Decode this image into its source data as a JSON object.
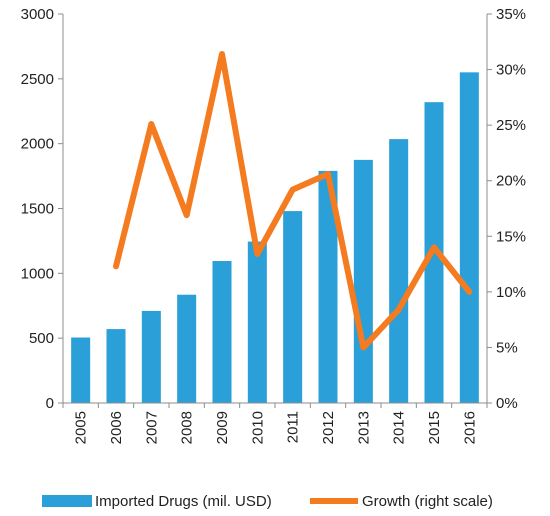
{
  "chart_data": {
    "type": "bar+line",
    "categories": [
      "2005",
      "2006",
      "2007",
      "2008",
      "2009",
      "2010",
      "2011",
      "2012",
      "2013",
      "2014",
      "2015",
      "2016"
    ],
    "series": [
      {
        "name": "Imported Drugs (mil. USD)",
        "type": "bar",
        "axis": "left",
        "color": "#2a9fd8",
        "values": [
          505,
          570,
          710,
          835,
          1095,
          1245,
          1480,
          1790,
          1875,
          2035,
          2320,
          2550
        ]
      },
      {
        "name": "Growth (right scale)",
        "type": "line",
        "axis": "right",
        "color": "#f47b20",
        "values": [
          null,
          12.3,
          25.1,
          16.9,
          31.4,
          13.4,
          19.2,
          20.6,
          5.0,
          8.4,
          14.0,
          10.0
        ]
      }
    ],
    "y_left": {
      "min": 0,
      "max": 3000,
      "ticks": [
        0,
        500,
        1000,
        1500,
        2000,
        2500,
        3000
      ]
    },
    "y_right": {
      "min": 0,
      "max": 35,
      "ticks": [
        "0%",
        "5%",
        "10%",
        "15%",
        "20%",
        "25%",
        "30%",
        "35%"
      ]
    },
    "grid": false,
    "legend_position": "bottom"
  }
}
